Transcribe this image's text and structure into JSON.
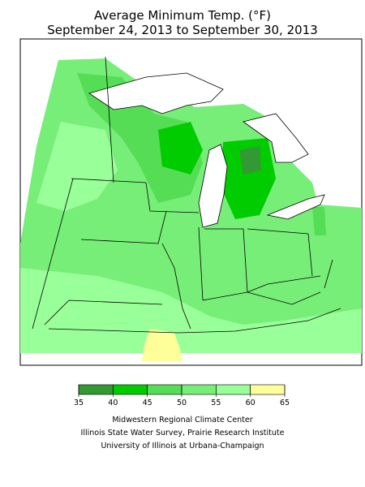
{
  "title": "Average Minimum Temp. (°F)",
  "subtitle": "September 24, 2013 to September 30, 2013",
  "legend": {
    "ticks": [
      35,
      40,
      45,
      50,
      55,
      60,
      65
    ],
    "colors": [
      "#339933",
      "#00cc00",
      "#55dd55",
      "#77ee77",
      "#99ff99",
      "#ffff99"
    ]
  },
  "credits": [
    "Midwestern Regional Climate Center",
    "Illinois State Water Survey, Prairie Research Institute",
    "University of Illinois at Urbana-Champaign"
  ]
}
